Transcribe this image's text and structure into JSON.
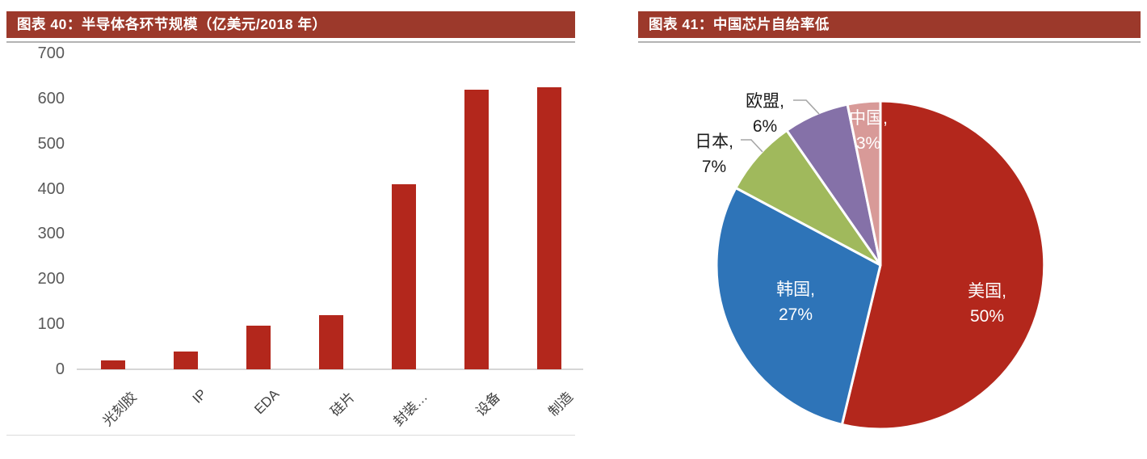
{
  "page": {
    "background": "#FFFFFF"
  },
  "colors": {
    "banner_bg": "#9C392B",
    "banner_text": "#FFFFFF",
    "banner_rule": "#B3B3B3",
    "axis_text": "#595959",
    "baseline": "#D6D6D6",
    "bar_red": "#B3271C",
    "outside_label_text": "#1A1A1A",
    "inside_label_text": "#FFFFFF",
    "leader_line": "#A6A6A6"
  },
  "chart_data": [
    {
      "type": "bar",
      "title": "图表 40：半导体各环节规模（亿美元/2018 年）",
      "categories": [
        "光刻胶",
        "IP",
        "EDA",
        "硅片",
        "封装…",
        "设备",
        "制造"
      ],
      "values": [
        20,
        40,
        97,
        120,
        410,
        620,
        625
      ],
      "xlabel": "",
      "ylabel": "",
      "ylim": [
        0,
        700
      ],
      "yticks": [
        0,
        100,
        200,
        300,
        400,
        500,
        600,
        700
      ],
      "grid": false,
      "legend": "none",
      "bar_color": "#B3271C"
    },
    {
      "type": "pie",
      "title": "图表 41：中国芯片自给率低",
      "start_angle_deg": 0,
      "clockwise": true,
      "slices": [
        {
          "label": "美国",
          "pct": 50,
          "line1": "美国,",
          "line2": "50%",
          "color": "#B3271C",
          "label_inside": true
        },
        {
          "label": "韩国",
          "pct": 27,
          "line1": "韩国,",
          "line2": "27%",
          "color": "#2E74B8",
          "label_inside": true
        },
        {
          "label": "日本",
          "pct": 7,
          "line1": "日本,",
          "line2": "7%",
          "color": "#A0B95C",
          "label_inside": false
        },
        {
          "label": "欧盟",
          "pct": 6,
          "line1": "欧盟,",
          "line2": "6%",
          "color": "#8571A8",
          "label_inside": false
        },
        {
          "label": "中国",
          "pct": 3,
          "line1": "中国,",
          "line2": "3%",
          "color": "#D89A98",
          "label_inside": true
        }
      ]
    }
  ]
}
